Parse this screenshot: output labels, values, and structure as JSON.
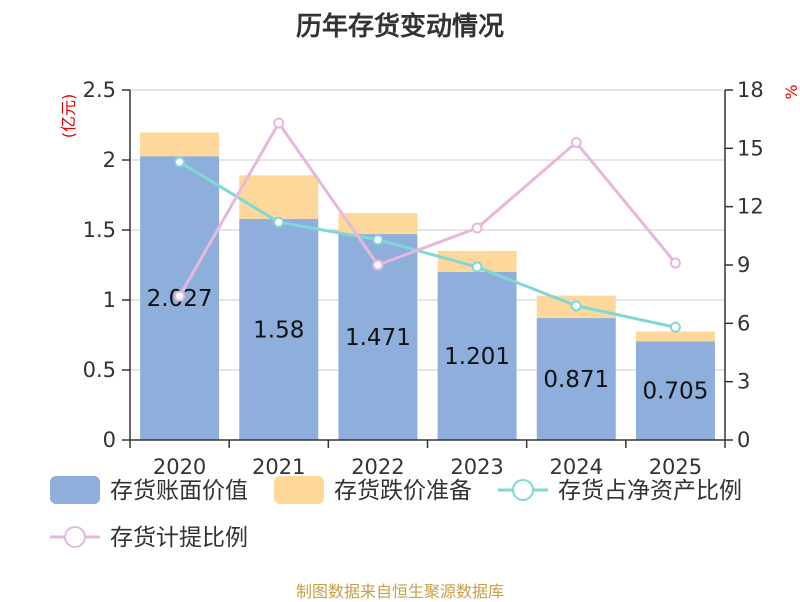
{
  "title": "历年存货变动情况",
  "source": "制图数据来自恒生聚源数据库",
  "chart_data": {
    "type": "bar",
    "stacked": true,
    "categories": [
      "2020",
      "2021",
      "2022",
      "2023",
      "2024",
      "2025"
    ],
    "y_left": {
      "unit": "(亿元)",
      "min": 0,
      "max": 2.5,
      "ticks": [
        "0",
        "0.5",
        "1",
        "1.5",
        "2",
        "2.5"
      ]
    },
    "y_right": {
      "unit": "%",
      "min": 0,
      "max": 18,
      "ticks": [
        "0",
        "3",
        "6",
        "9",
        "12",
        "15",
        "18"
      ]
    },
    "bar_series": [
      {
        "name": "存货账面价值",
        "color": "#8eafdb",
        "values": [
          2.027,
          1.58,
          1.471,
          1.201,
          0.871,
          0.705
        ],
        "labels": [
          "2.027",
          "1.58",
          "1.471",
          "1.201",
          "0.871",
          "0.705"
        ]
      },
      {
        "name": "存货跌价准备",
        "color": "#fdd89a",
        "values": [
          0.17,
          0.31,
          0.15,
          0.15,
          0.16,
          0.07
        ]
      }
    ],
    "line_series": [
      {
        "name": "存货占净资产比例",
        "color": "#80d8d4",
        "axis": "right",
        "values": [
          14.3,
          11.2,
          10.3,
          8.9,
          6.9,
          5.8
        ]
      },
      {
        "name": "存货计提比例",
        "color": "#e8b8dc",
        "axis": "right",
        "values": [
          7.4,
          16.3,
          9.0,
          10.9,
          15.3,
          9.1
        ]
      }
    ],
    "grid": true,
    "legend_position": "bottom"
  }
}
